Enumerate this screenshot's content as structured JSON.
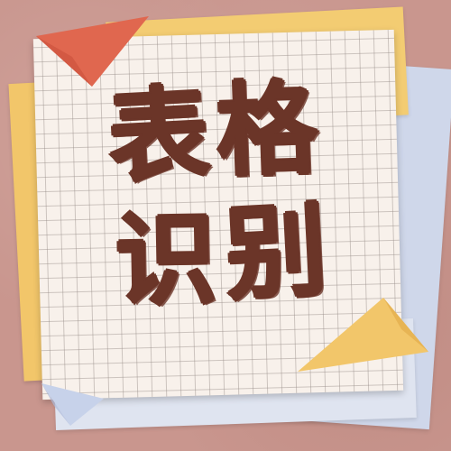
{
  "title": {
    "line1": [
      "表",
      "格"
    ],
    "line2": [
      "识",
      "别"
    ]
  },
  "colors": {
    "background": "#c9968e",
    "text": "#6b3528",
    "paper": "#f8f1eb",
    "accent_red": "#e0674f",
    "accent_yellow": "#f2c66a",
    "accent_blue": "#cfd7ea"
  }
}
